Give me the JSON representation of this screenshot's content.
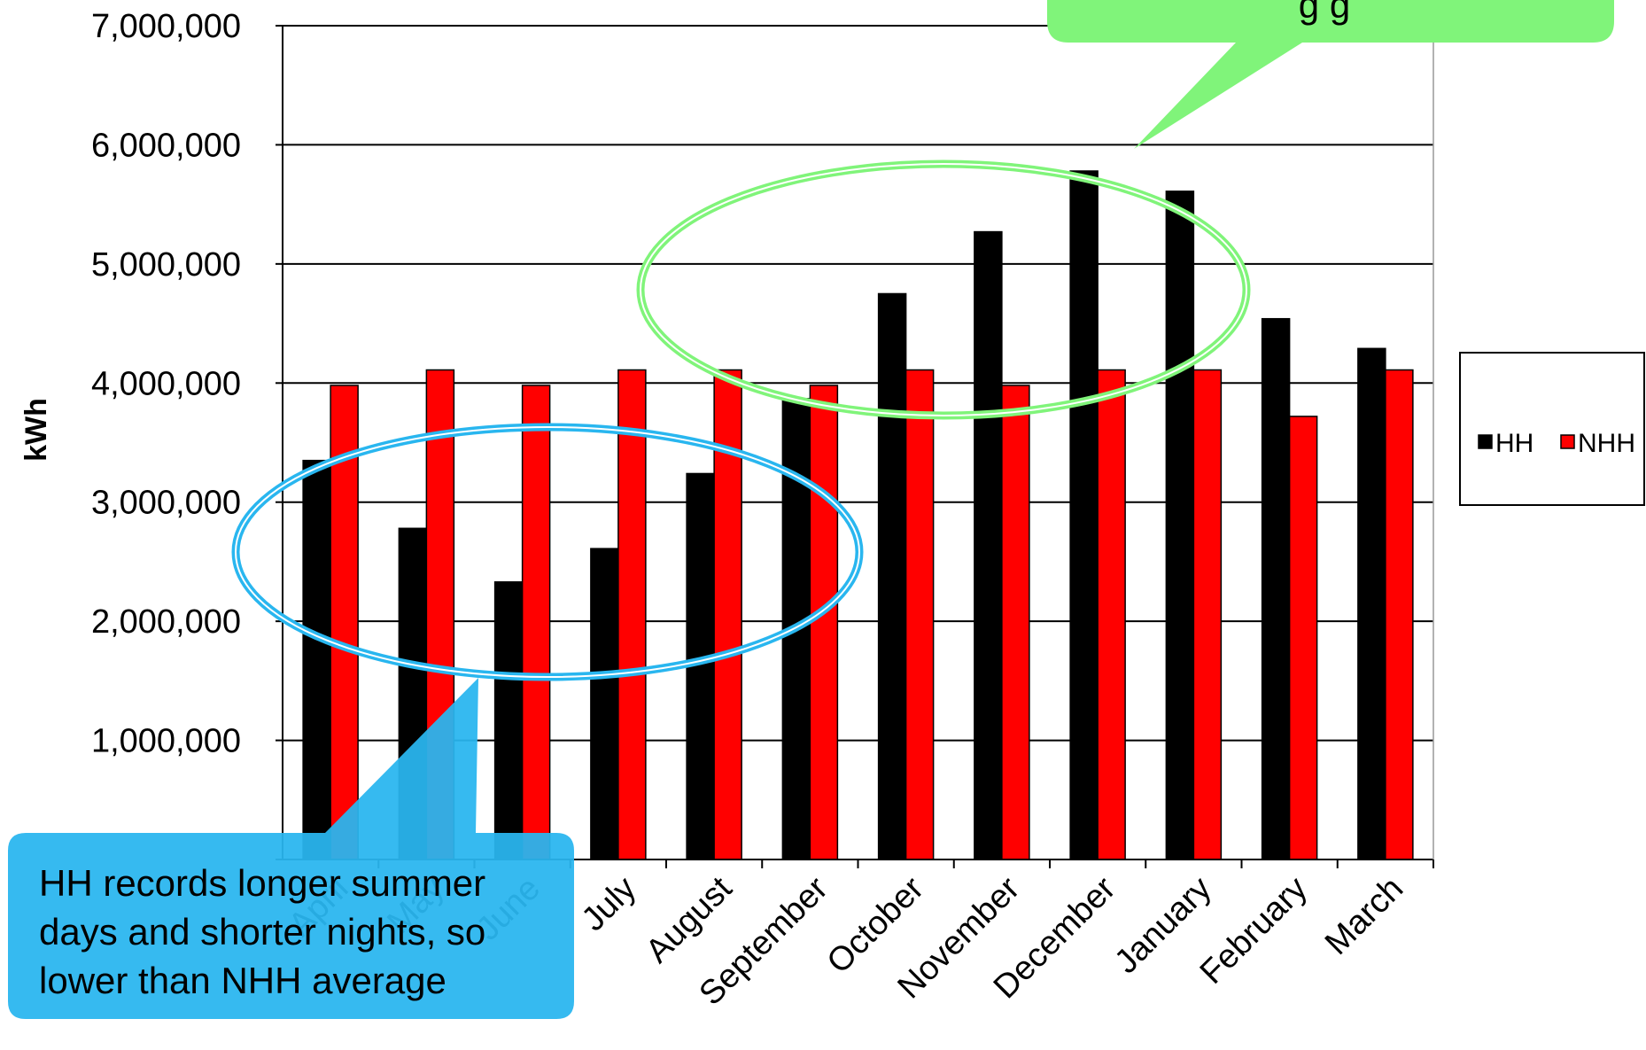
{
  "chart_data": {
    "type": "bar",
    "ylabel": "kWh",
    "ylim": [
      0,
      7000000
    ],
    "yticks": [
      0,
      1000000,
      2000000,
      3000000,
      4000000,
      5000000,
      6000000,
      7000000
    ],
    "ytick_labels": [
      "",
      "1,000,000",
      "2,000,000",
      "3,000,000",
      "4,000,000",
      "5,000,000",
      "6,000,000",
      "7,000,000"
    ],
    "categories": [
      "April",
      "May",
      "June",
      "July",
      "August",
      "September",
      "October",
      "November",
      "December",
      "January",
      "February",
      "March"
    ],
    "series": [
      {
        "name": "HH",
        "color": "#000000",
        "values": [
          3350000,
          2780000,
          2330000,
          2610000,
          3240000,
          3870000,
          4750000,
          5270000,
          5780000,
          5610000,
          4540000,
          4290000
        ]
      },
      {
        "name": "NHH",
        "color": "#ff0000",
        "values": [
          3980000,
          4110000,
          3980000,
          4110000,
          4110000,
          3980000,
          4110000,
          3980000,
          4110000,
          4110000,
          3720000,
          4110000
        ]
      }
    ],
    "grid": "horizontal",
    "legend": "right"
  },
  "annotations": {
    "summer": {
      "lines": [
        "HH records longer summer",
        "days and shorter nights, so",
        "lower than NHH average"
      ],
      "color": "#29b6ef"
    },
    "winter": {
      "lines": [
        "g    g"
      ],
      "color": "#80f47a"
    }
  }
}
